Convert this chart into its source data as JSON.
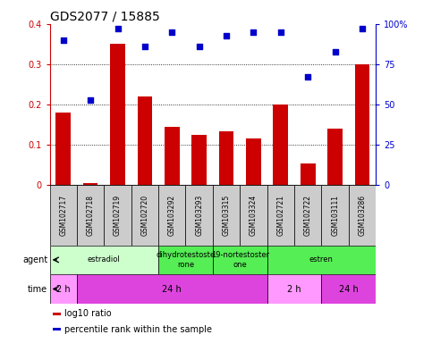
{
  "title": "GDS2077 / 15885",
  "samples": [
    "GSM102717",
    "GSM102718",
    "GSM102719",
    "GSM102720",
    "GSM103292",
    "GSM103293",
    "GSM103315",
    "GSM103324",
    "GSM102721",
    "GSM102722",
    "GSM103111",
    "GSM103286"
  ],
  "log10_ratio": [
    0.18,
    0.005,
    0.35,
    0.22,
    0.145,
    0.125,
    0.133,
    0.117,
    0.2,
    0.055,
    0.14,
    0.3
  ],
  "percentile": [
    90,
    53,
    97,
    86,
    95,
    86,
    93,
    95,
    95,
    67,
    83,
    97
  ],
  "bar_color": "#cc0000",
  "dot_color": "#0000cc",
  "ylim_left": [
    0,
    0.4
  ],
  "ylim_right": [
    0,
    100
  ],
  "yticks_left": [
    0,
    0.1,
    0.2,
    0.3,
    0.4
  ],
  "ytick_labels_left": [
    "0",
    "0.1",
    "0.2",
    "0.3",
    "0.4"
  ],
  "yticks_right": [
    0,
    25,
    50,
    75,
    100
  ],
  "ytick_labels_right": [
    "0",
    "25",
    "50",
    "75",
    "100%"
  ],
  "gridlines": [
    0.1,
    0.2,
    0.3
  ],
  "agent_groups": [
    {
      "label": "estradiol",
      "start": 0,
      "end": 4,
      "color": "#ccffcc"
    },
    {
      "label": "dihydrotestoste\nrone",
      "start": 4,
      "end": 6,
      "color": "#55ee55"
    },
    {
      "label": "19-nortestoster\none",
      "start": 6,
      "end": 8,
      "color": "#55ee55"
    },
    {
      "label": "estren",
      "start": 8,
      "end": 12,
      "color": "#55ee55"
    }
  ],
  "time_groups": [
    {
      "label": "2 h",
      "start": 0,
      "end": 1,
      "color": "#ff99ff"
    },
    {
      "label": "24 h",
      "start": 1,
      "end": 8,
      "color": "#dd44dd"
    },
    {
      "label": "2 h",
      "start": 8,
      "end": 10,
      "color": "#ff99ff"
    },
    {
      "label": "24 h",
      "start": 10,
      "end": 12,
      "color": "#dd44dd"
    }
  ],
  "legend_items": [
    {
      "color": "#cc0000",
      "label": "log10 ratio"
    },
    {
      "color": "#0000cc",
      "label": "percentile rank within the sample"
    }
  ],
  "xlabel_agent": "agent",
  "xlabel_time": "time",
  "sample_bg": "#cccccc",
  "title_fontsize": 10,
  "tick_fontsize": 7,
  "bar_width": 0.55
}
